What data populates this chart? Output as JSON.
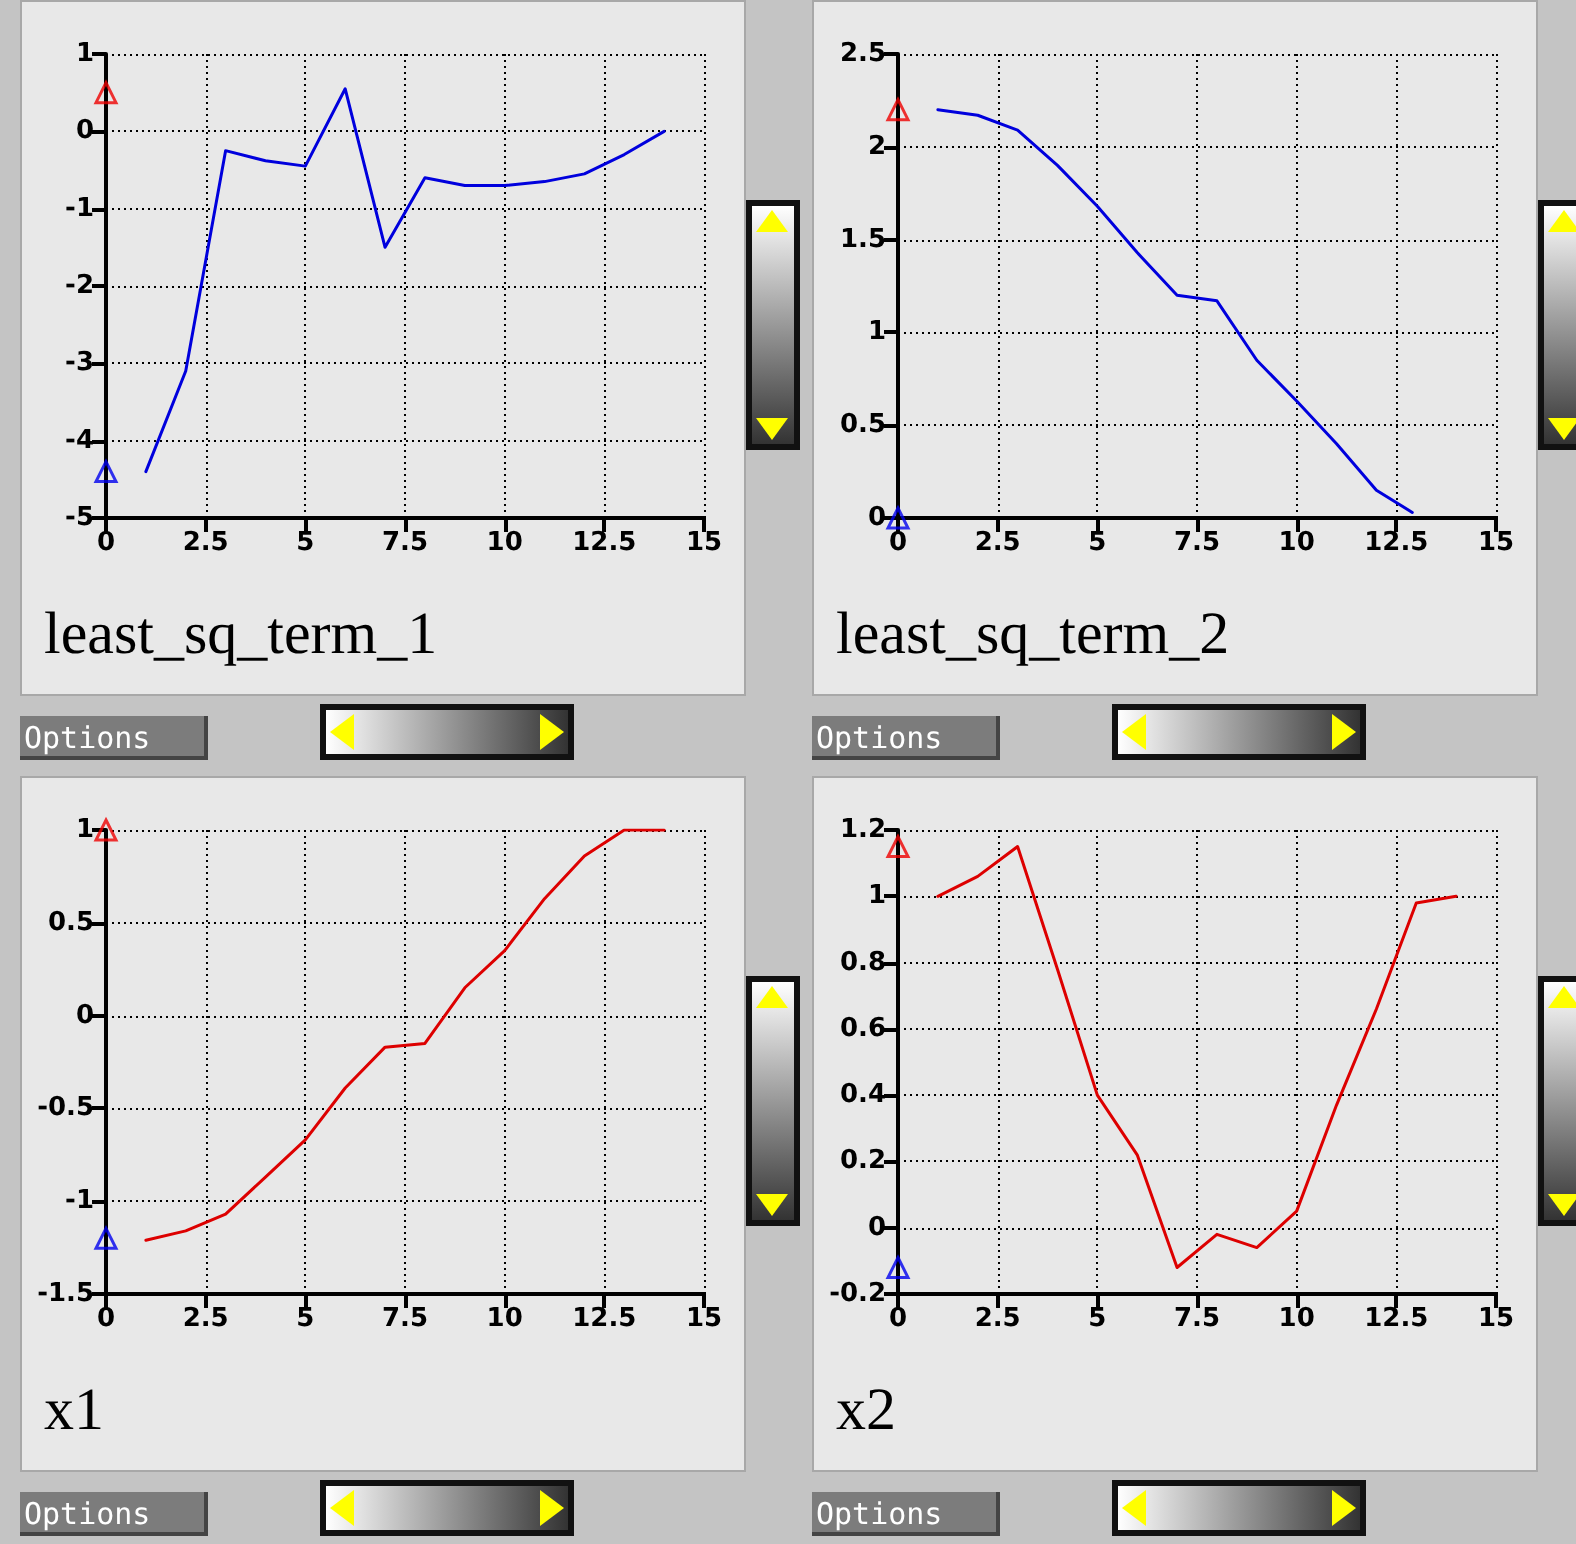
{
  "chart_data": [
    {
      "type": "line",
      "title": "least_sq_term_1",
      "annotations": [
        "Options"
      ],
      "xlim": [
        0,
        15
      ],
      "xticks": [
        0,
        2.5,
        5,
        7.5,
        10,
        12.5,
        15
      ],
      "ylim": [
        -5,
        1
      ],
      "yticks": [
        -5,
        -4,
        -3,
        -2,
        -1,
        0,
        1
      ],
      "grid": true,
      "line_style": "solid",
      "marker": "none",
      "series": [
        {
          "color": "#0000dd",
          "x": [
            1,
            2,
            3,
            4,
            5,
            6,
            7,
            8,
            9,
            10,
            11,
            12,
            13,
            14
          ],
          "values": [
            -4.4,
            -3.1,
            -0.25,
            -0.38,
            -0.45,
            0.55,
            -1.5,
            -0.6,
            -0.7,
            -0.7,
            -0.65,
            -0.55,
            -0.3,
            0
          ]
        },
        {
          "type": "scatter",
          "marker": "triangle",
          "color": "#ee0000",
          "x": [
            0
          ],
          "values": [
            0.5
          ]
        },
        {
          "type": "scatter",
          "marker": "triangle",
          "color": "#0000ee",
          "x": [
            0
          ],
          "values": [
            -4.4
          ]
        }
      ]
    },
    {
      "type": "line",
      "title": "least_sq_term_2",
      "annotations": [
        "Options"
      ],
      "xlim": [
        0,
        15
      ],
      "xticks": [
        0,
        2.5,
        5,
        7.5,
        10,
        12.5,
        15
      ],
      "ylim": [
        0,
        2.5
      ],
      "yticks": [
        0,
        0.5,
        1,
        1.5,
        2,
        2.5
      ],
      "grid": true,
      "line_style": "solid",
      "marker": "none",
      "series": [
        {
          "color": "#0000dd",
          "x": [
            1,
            2,
            3,
            4,
            5,
            6,
            7,
            8,
            9,
            10,
            11,
            12,
            12.9
          ],
          "values": [
            2.2,
            2.17,
            2.09,
            1.9,
            1.68,
            1.43,
            1.2,
            1.17,
            0.85,
            0.63,
            0.4,
            0.15,
            0.03
          ]
        },
        {
          "type": "scatter",
          "marker": "triangle",
          "color": "#ee0000",
          "x": [
            0
          ],
          "values": [
            2.2
          ]
        },
        {
          "type": "scatter",
          "marker": "triangle",
          "color": "#0000ee",
          "x": [
            0
          ],
          "values": [
            0
          ]
        }
      ]
    },
    {
      "type": "line",
      "title": "x1",
      "annotations": [
        "Options"
      ],
      "xlim": [
        0,
        15
      ],
      "xticks": [
        0,
        2.5,
        5,
        7.5,
        10,
        12.5,
        15
      ],
      "ylim": [
        -1.5,
        1
      ],
      "yticks": [
        -1.5,
        -1,
        -0.5,
        0,
        0.5,
        1
      ],
      "grid": true,
      "line_style": "solid",
      "marker": "none",
      "series": [
        {
          "color": "#dd0000",
          "x": [
            1,
            2,
            3,
            4,
            5,
            6,
            7,
            8,
            9,
            10,
            11,
            12,
            13,
            14
          ],
          "values": [
            -1.21,
            -1.16,
            -1.07,
            -0.87,
            -0.67,
            -0.39,
            -0.17,
            -0.15,
            0.15,
            0.35,
            0.63,
            0.86,
            1,
            1
          ]
        },
        {
          "type": "scatter",
          "marker": "triangle",
          "color": "#ee0000",
          "x": [
            0
          ],
          "values": [
            1
          ]
        },
        {
          "type": "scatter",
          "marker": "triangle",
          "color": "#0000ee",
          "x": [
            0
          ],
          "values": [
            -1.2
          ]
        }
      ]
    },
    {
      "type": "line",
      "title": "x2",
      "annotations": [
        "Options"
      ],
      "xlim": [
        0,
        15
      ],
      "xticks": [
        0,
        2.5,
        5,
        7.5,
        10,
        12.5,
        15
      ],
      "ylim": [
        -0.2,
        1.2
      ],
      "yticks": [
        -0.2,
        0,
        0.2,
        0.4,
        0.6,
        0.8,
        1,
        1.2
      ],
      "grid": true,
      "line_style": "solid",
      "marker": "none",
      "series": [
        {
          "color": "#dd0000",
          "x": [
            1,
            2,
            3,
            4,
            5,
            6,
            7,
            8,
            9,
            10,
            11,
            12,
            13,
            14
          ],
          "values": [
            1,
            1.06,
            1.15,
            0.78,
            0.4,
            0.22,
            -0.12,
            -0.02,
            -0.06,
            0.05,
            0.37,
            0.66,
            0.98,
            1
          ]
        },
        {
          "type": "scatter",
          "marker": "triangle",
          "color": "#ee0000",
          "x": [
            0
          ],
          "values": [
            1.15
          ]
        },
        {
          "type": "scatter",
          "marker": "triangle",
          "color": "#0000ee",
          "x": [
            0
          ],
          "values": [
            -0.12
          ]
        }
      ]
    }
  ]
}
